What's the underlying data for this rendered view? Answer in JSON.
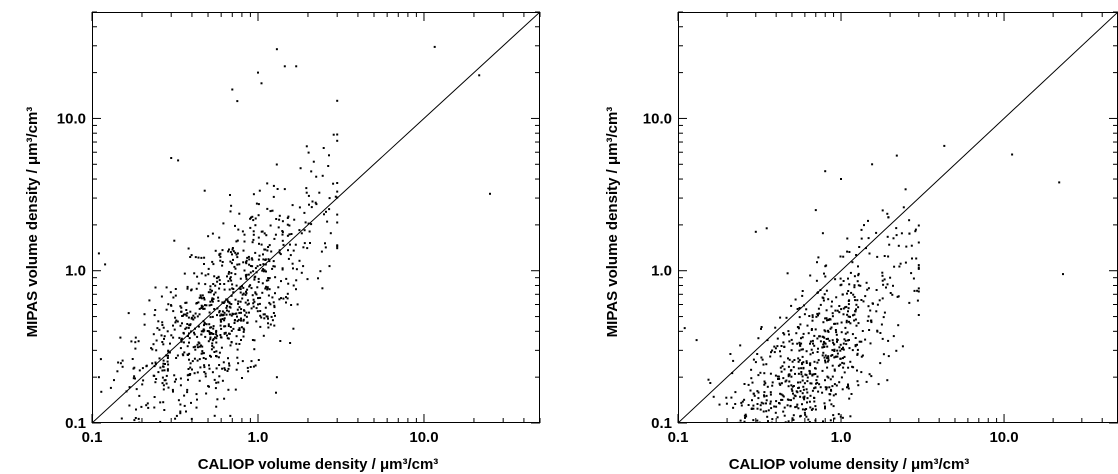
{
  "chart_data": [
    {
      "type": "scatter",
      "xlabel": "CALIOP volume density / μm³/cm³",
      "ylabel": "MIPAS volume density / μm³/cm³",
      "x_scale": "log",
      "y_scale": "log",
      "xlim": [
        0.1,
        50
      ],
      "ylim": [
        0.1,
        50
      ],
      "xticks": [
        0.1,
        1.0,
        10.0
      ],
      "xtick_labels": [
        "0.1",
        "1.0",
        "10.0"
      ],
      "yticks": [
        0.1,
        1.0,
        10.0
      ],
      "ytick_labels": [
        "0.1",
        "1.0",
        "10.0"
      ],
      "reference_line": "y = x",
      "grid": false,
      "point_color": "#000000",
      "point_count": 900,
      "cloud": {
        "log_x_mean": -0.2,
        "log_x_sd": 0.3,
        "slope": 0.95,
        "intercept": -0.05,
        "log_y_sd": 0.27,
        "x_min": 0.1,
        "x_max": 3.0
      },
      "points": [
        [
          11.6,
          29.5
        ],
        [
          21.5,
          19.2
        ],
        [
          25.0,
          3.2
        ],
        [
          1.3,
          28.5
        ],
        [
          1.45,
          22.0
        ],
        [
          1.7,
          22.0
        ],
        [
          1.0,
          20.0
        ],
        [
          1.05,
          17.0
        ],
        [
          0.7,
          15.5
        ],
        [
          0.75,
          13.0
        ],
        [
          0.11,
          1.3
        ],
        [
          0.12,
          1.1
        ],
        [
          0.11,
          0.2
        ],
        [
          0.13,
          0.1
        ],
        [
          0.3,
          5.5
        ],
        [
          0.33,
          5.3
        ],
        [
          2.7,
          3.0
        ],
        [
          1.3,
          0.2
        ]
      ]
    },
    {
      "type": "scatter",
      "xlabel": "CALIOP volume density / μm³/cm³",
      "ylabel": "MIPAS volume density / μm³/cm³",
      "x_scale": "log",
      "y_scale": "log",
      "xlim": [
        0.1,
        50
      ],
      "ylim": [
        0.1,
        50
      ],
      "xticks": [
        0.1,
        1.0,
        10.0
      ],
      "xtick_labels": [
        "0.1",
        "1.0",
        "10.0"
      ],
      "yticks": [
        0.1,
        1.0,
        10.0
      ],
      "ytick_labels": [
        "0.1",
        "1.0",
        "10.0"
      ],
      "reference_line": "y = x",
      "grid": false,
      "point_color": "#000000",
      "point_count": 900,
      "cloud": {
        "log_x_mean": -0.2,
        "log_x_sd": 0.3,
        "slope": 1.1,
        "intercept": -0.45,
        "log_y_sd": 0.27,
        "x_min": 0.1,
        "x_max": 3.0
      },
      "points": [
        [
          4.3,
          6.6
        ],
        [
          11.2,
          5.8
        ],
        [
          21.8,
          3.8
        ],
        [
          23.0,
          0.95
        ],
        [
          2.2,
          5.7
        ],
        [
          1.55,
          5.0
        ],
        [
          1.0,
          4.0
        ],
        [
          0.8,
          4.5
        ],
        [
          0.7,
          2.5
        ],
        [
          0.3,
          1.8
        ],
        [
          0.35,
          1.9
        ],
        [
          0.11,
          0.42
        ],
        [
          0.13,
          0.35
        ],
        [
          1.7,
          0.18
        ],
        [
          2.0,
          0.9
        ]
      ]
    }
  ]
}
